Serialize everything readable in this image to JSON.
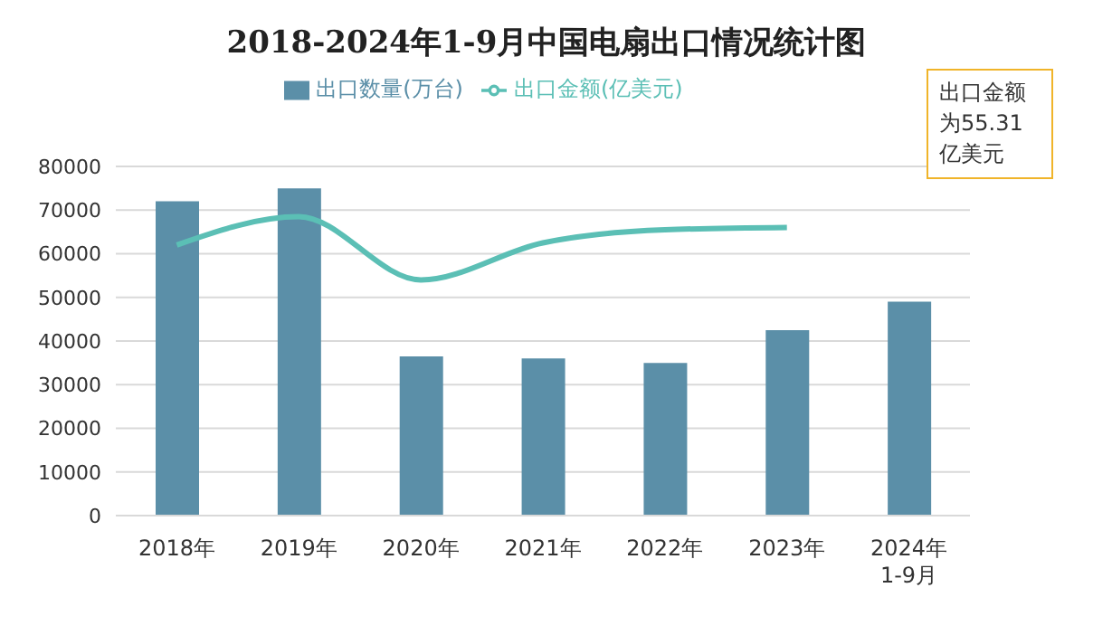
{
  "chart_data": {
    "type": "bar",
    "title": "2018-2024年1-9月中国电扇出口情况统计图",
    "categories": [
      "2018年",
      "2019年",
      "2020年",
      "2021年",
      "2022年",
      "2023年",
      "2024年1-9月"
    ],
    "series": [
      {
        "name": "出口数量(万台)",
        "color": "#5b8fa8",
        "values": [
          72000,
          75000,
          36500,
          36000,
          35000,
          42500,
          49000
        ]
      },
      {
        "name": "出口金额(亿美元)",
        "type": "line",
        "color": "#5bbfb5",
        "values": [
          62000,
          68500,
          54000,
          62500,
          65500,
          66000,
          null
        ]
      }
    ],
    "ylim": [
      0,
      80000
    ],
    "yticks": [
      0,
      10000,
      20000,
      30000,
      40000,
      50000,
      60000,
      70000,
      80000
    ],
    "grid": "y",
    "legend": "top",
    "annotations": [
      "出口金额为55.31亿美元"
    ]
  }
}
